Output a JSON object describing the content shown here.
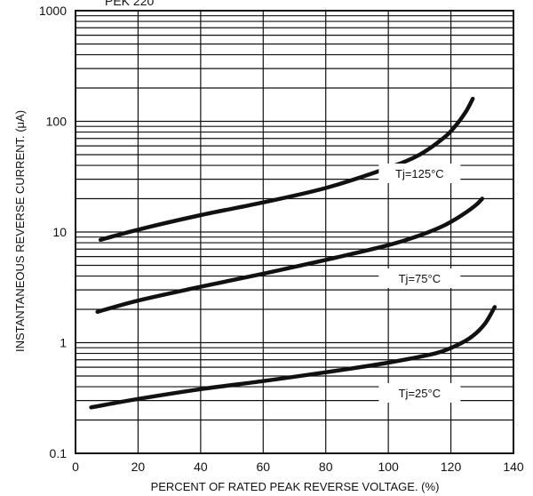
{
  "chart_data": {
    "type": "line",
    "title": "",
    "partial_title_visible": "PEK 220",
    "xlabel": "PERCENT OF RATED PEAK REVERSE VOLTAGE. (%)",
    "ylabel": "INSTANTANEOUS REVERSE CURRENT. (μA)",
    "x_scale": "linear",
    "y_scale": "log",
    "xlim": [
      0,
      140
    ],
    "ylim": [
      0.1,
      1000
    ],
    "grid": true,
    "x_ticks": [
      "0",
      "20",
      "40",
      "60",
      "80",
      "100",
      "120",
      "140"
    ],
    "y_ticks": [
      "0.1",
      "1",
      "10",
      "100",
      "1000"
    ],
    "series": [
      {
        "name": "Tj=125°C",
        "x": [
          8,
          20,
          40,
          60,
          80,
          100,
          110,
          118,
          122,
          125,
          127
        ],
        "y": [
          8.5,
          10.5,
          14.2,
          18.5,
          25,
          38,
          50,
          72,
          95,
          125,
          160
        ]
      },
      {
        "name": "Tj=75°C",
        "x": [
          7,
          20,
          40,
          60,
          80,
          100,
          110,
          118,
          124,
          128,
          130
        ],
        "y": [
          1.9,
          2.4,
          3.2,
          4.2,
          5.6,
          7.6,
          9.3,
          11.5,
          14.5,
          17.5,
          20
        ]
      },
      {
        "name": "Tj=25°C",
        "x": [
          5,
          20,
          40,
          60,
          80,
          100,
          115,
          122,
          127,
          131,
          134
        ],
        "y": [
          0.26,
          0.31,
          0.38,
          0.45,
          0.54,
          0.66,
          0.8,
          0.95,
          1.15,
          1.5,
          2.1
        ]
      }
    ]
  }
}
